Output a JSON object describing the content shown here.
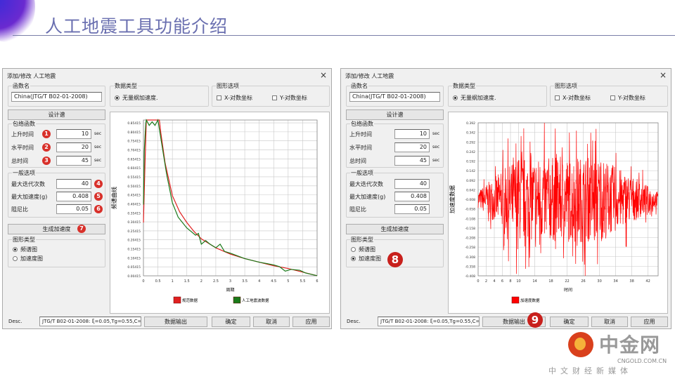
{
  "slide": {
    "title": "人工地震工具功能介绍"
  },
  "colors": {
    "design_spectrum": "#e02020",
    "artificial_wave": "#1a7a1a",
    "accel": "#ff0000",
    "badge": "#d8302a"
  },
  "dialogs": [
    {
      "title": "添加/修改 人工地震",
      "close_icon": "×",
      "func_name_label": "函数名",
      "func_name_value": "China(JTG/T B02-01-2008)",
      "data_type_label": "数据类型",
      "data_type_option": "无量纲加速度.",
      "graph_options_label": "图形选项",
      "x_log": "X-对数坐标",
      "y_log": "Y-对数坐标",
      "design_spectrum_button": "设计谱",
      "envelope_label": "包络函数",
      "envelope": [
        {
          "label": "上升时间",
          "value": "10",
          "unit": "sec",
          "badge": "1"
        },
        {
          "label": "水平时间",
          "value": "20",
          "unit": "sec",
          "badge": "2"
        },
        {
          "label": "总时间",
          "value": "45",
          "unit": "sec",
          "badge": "3"
        }
      ],
      "general_label": "一般选项",
      "general": [
        {
          "label": "最大迭代次数",
          "value": "40",
          "badge": "4"
        },
        {
          "label": "最大加速度(g)",
          "value": "0.408",
          "badge": "5"
        },
        {
          "label": "阻尼比",
          "value": "0.05",
          "badge": "6"
        }
      ],
      "generate_button": "生成加速度",
      "generate_badge": "7",
      "graph_type_label": "图形类型",
      "graph_types": [
        "频谱图",
        "加速度图"
      ],
      "graph_type_selected": 0,
      "desc_label": "Desc.",
      "desc_value": "JTG/T B02-01-2008: ξ=0.05,Tg=0.55,C=1",
      "export_button": "数据输出",
      "ok_button": "确定",
      "cancel_button": "取消",
      "apply_button": "应用"
    },
    {
      "title": "添加/修改 人工地震",
      "close_icon": "×",
      "func_name_label": "函数名",
      "func_name_value": "China(JTG/T B02-01-2008)",
      "data_type_label": "数据类型",
      "data_type_option": "无量纲加速度.",
      "graph_options_label": "图形选项",
      "x_log": "X-对数坐标",
      "y_log": "Y-对数坐标",
      "design_spectrum_button": "设计谱",
      "envelope_label": "包络函数",
      "envelope": [
        {
          "label": "上升时间",
          "value": "10",
          "unit": "sec"
        },
        {
          "label": "水平时间",
          "value": "20",
          "unit": "sec"
        },
        {
          "label": "总时间",
          "value": "45",
          "unit": "sec"
        }
      ],
      "general_label": "一般选项",
      "general": [
        {
          "label": "最大迭代次数",
          "value": "40"
        },
        {
          "label": "最大加速度(g)",
          "value": "0.408"
        },
        {
          "label": "阻尼比",
          "value": "0.05"
        }
      ],
      "generate_button": "生成加速度",
      "graph_type_label": "图形类型",
      "graph_types": [
        "频谱图",
        "加速度图"
      ],
      "graph_type_selected": 1,
      "graph_type_badge": "8",
      "desc_label": "Desc.",
      "desc_value": "JTG/T B02-01-2008: ξ=0.05,Tg=0.55,C=1",
      "export_button": "数据输出",
      "export_badge": "9",
      "ok_button": "确定",
      "cancel_button": "取消",
      "apply_button": "应用"
    }
  ],
  "chart_data": [
    {
      "type": "line",
      "xlabel": "周期",
      "ylabel": "频谱曲线",
      "xlim": [
        0,
        6
      ],
      "ylim": [
        0.00415,
        0.87
      ],
      "grid": true,
      "legend": "bottom",
      "xticks": [
        "0",
        "0.5",
        "1",
        "1.5",
        "2",
        "2.5",
        "3",
        "3.5",
        "4",
        "4.5",
        "5",
        "5.5",
        "6"
      ],
      "yticks": [
        "0.00415",
        "0.05415",
        "0.10415",
        "0.15415",
        "0.20415",
        "0.25415",
        "0.30415",
        "0.35415",
        "0.40415",
        "0.45415",
        "0.50415",
        "0.55415",
        "0.60415",
        "0.65415",
        "0.70415",
        "0.75415",
        "0.80415",
        "0.85415"
      ],
      "series": [
        {
          "name": "规范数据",
          "color": "#e02020",
          "x": [
            0,
            0.05,
            0.1,
            0.55,
            0.6,
            0.75,
            1,
            1.25,
            1.5,
            1.75,
            2,
            2.5,
            3,
            3.5,
            4,
            4.5,
            5,
            5.5,
            6
          ],
          "y": [
            0.3,
            0.6,
            0.87,
            0.87,
            0.8,
            0.63,
            0.45,
            0.36,
            0.3,
            0.25,
            0.21,
            0.16,
            0.125,
            0.1,
            0.08,
            0.06,
            0.045,
            0.025,
            0.005
          ]
        },
        {
          "name": "人工地震波数据",
          "color": "#1a7a1a",
          "x": [
            0,
            0.03,
            0.08,
            0.1,
            0.2,
            0.3,
            0.4,
            0.5,
            0.55,
            0.6,
            0.7,
            0.8,
            0.9,
            1,
            1.1,
            1.2,
            1.3,
            1.5,
            1.65,
            1.8,
            1.9,
            2,
            2.15,
            2.3,
            2.5,
            2.65,
            2.8,
            3,
            3.5,
            4,
            4.5,
            4.7,
            4.9,
            5.1,
            5.4,
            5.6,
            6
          ],
          "y": [
            0.4,
            0.7,
            0.85,
            0.87,
            0.84,
            0.86,
            0.84,
            0.87,
            0.82,
            0.77,
            0.67,
            0.57,
            0.49,
            0.41,
            0.37,
            0.33,
            0.31,
            0.27,
            0.25,
            0.23,
            0.24,
            0.18,
            0.2,
            0.18,
            0.16,
            0.18,
            0.14,
            0.13,
            0.1,
            0.08,
            0.065,
            0.055,
            0.03,
            0.04,
            0.035,
            0.02,
            0.005
          ]
        }
      ]
    },
    {
      "type": "line",
      "xlabel": "时间",
      "ylabel": "加速度数据",
      "xlim": [
        0,
        44.5
      ],
      "ylim": [
        -0.408,
        0.392
      ],
      "grid": true,
      "legend": "bottom",
      "xticks": [
        0,
        2,
        4,
        6,
        8,
        10,
        14,
        18,
        22,
        26,
        30,
        34,
        38,
        42
      ],
      "yticks": [
        "0.392",
        "0.342",
        "0.292",
        "0.242",
        "0.192",
        "0.142",
        "0.092",
        "0.042",
        "-0.008",
        "-0.058",
        "-0.108",
        "-0.158",
        "-0.208",
        "-0.258",
        "-0.308",
        "-0.358",
        "-0.408"
      ],
      "series": [
        {
          "name": "加速度数据",
          "color": "#ff0000",
          "envelope": {
            "rise_sec": 10,
            "level_sec": 20,
            "total_sec": 45
          },
          "peak": 0.408
        }
      ]
    }
  ],
  "watermark": {
    "brand": "中金网",
    "domain": "CNGOLD.COM.CN",
    "tagline": "中文财经新媒体"
  }
}
